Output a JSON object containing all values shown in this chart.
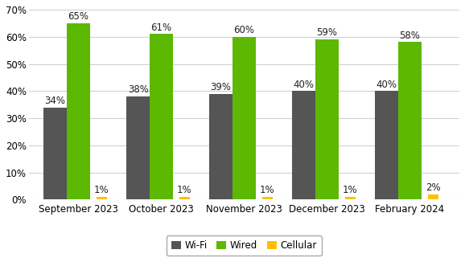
{
  "categories": [
    "September 2023",
    "October 2023",
    "November 2023",
    "December 2023",
    "February 2024"
  ],
  "series": [
    {
      "label": "Wi-Fi",
      "values": [
        34,
        38,
        39,
        40,
        40
      ],
      "color": "#555555"
    },
    {
      "label": "Wired",
      "values": [
        65,
        61,
        60,
        59,
        58
      ],
      "color": "#5cb800"
    },
    {
      "label": "Cellular",
      "values": [
        1,
        1,
        1,
        1,
        2
      ],
      "color": "#ffc000"
    }
  ],
  "ylim": [
    0,
    70
  ],
  "yticks": [
    0,
    10,
    20,
    30,
    40,
    50,
    60,
    70
  ],
  "bar_width": 0.28,
  "label_fontsize": 8.5,
  "tick_fontsize": 8.5,
  "legend_fontsize": 8.5,
  "background_color": "#ffffff",
  "grid_color": "#d0d0d0"
}
